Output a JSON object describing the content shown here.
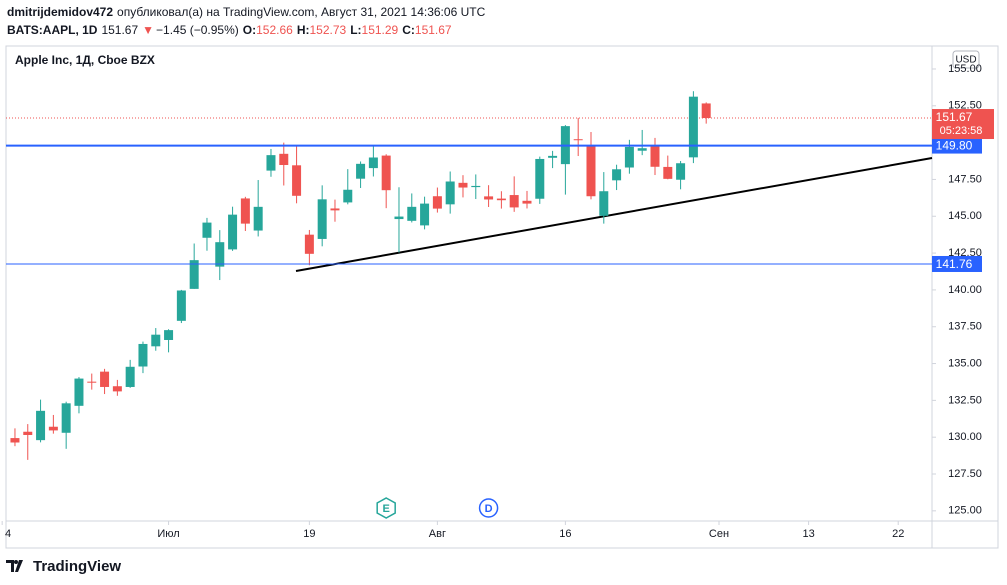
{
  "header": {
    "author": "dmitrijdemidov472",
    "published": "опубликовал(а) на TradingView.com, Август 31, 2021 14:36:06 UTC",
    "symbol": "BATS:AAPL, 1D",
    "last": "151.67",
    "arrow": "▼",
    "change": "−1.45 (−0.95%)",
    "o_label": "O:",
    "open": "152.66",
    "h_label": "H:",
    "high": "152.73",
    "l_label": "L:",
    "low": "151.29",
    "c_label": "C:",
    "close": "151.67"
  },
  "footer": {
    "brand": "TradingView"
  },
  "chart_data": {
    "type": "candlestick",
    "title": "Apple Inc, 1Д, Cboe BZX",
    "currency": "USD",
    "up_color": "#26a69a",
    "down_color": "#ef5350",
    "x": [
      0,
      1,
      2,
      3,
      4,
      5,
      6,
      7,
      8,
      9,
      10,
      11,
      12,
      13,
      14,
      15,
      16,
      17,
      18,
      19,
      20,
      21,
      22,
      23,
      24,
      25,
      26,
      27,
      28,
      29,
      30,
      31,
      32,
      33,
      34,
      35,
      36,
      37,
      38,
      39,
      40,
      41,
      42,
      43,
      44,
      45,
      46,
      47,
      48,
      49,
      50,
      51,
      52,
      53,
      54
    ],
    "open": [
      129.94,
      130.37,
      129.8,
      130.71,
      130.3,
      132.13,
      133.77,
      134.45,
      133.46,
      133.41,
      134.8,
      136.17,
      136.6,
      137.9,
      140.07,
      143.54,
      141.58,
      142.75,
      146.21,
      144.03,
      148.1,
      149.24,
      148.46,
      143.75,
      143.46,
      145.53,
      145.94,
      147.55,
      148.27,
      149.12,
      144.81,
      144.69,
      144.38,
      146.36,
      145.81,
      147.27,
      146.98,
      146.35,
      146.2,
      146.44,
      146.05,
      146.19,
      148.97,
      148.54,
      150.23,
      149.8,
      145.03,
      147.44,
      148.31,
      149.45,
      149.81,
      148.35,
      147.48,
      149.0,
      152.66
    ],
    "high": [
      130.6,
      130.89,
      132.55,
      131.51,
      132.41,
      134.08,
      134.32,
      134.64,
      133.89,
      135.25,
      136.49,
      137.41,
      137.33,
      140.0,
      143.15,
      144.89,
      144.06,
      145.65,
      146.32,
      147.46,
      149.57,
      150.0,
      149.76,
      144.07,
      147.1,
      146.13,
      148.2,
      148.72,
      149.83,
      149.21,
      146.97,
      146.55,
      146.33,
      146.95,
      148.04,
      147.79,
      147.84,
      147.11,
      146.7,
      147.71,
      146.72,
      149.05,
      149.44,
      151.19,
      151.68,
      150.72,
      148.0,
      148.5,
      150.19,
      150.86,
      150.32,
      149.12,
      148.75,
      153.49,
      152.73
    ],
    "low": [
      129.39,
      128.46,
      129.65,
      130.24,
      129.21,
      131.62,
      133.23,
      132.93,
      132.81,
      133.35,
      134.35,
      135.87,
      135.76,
      137.75,
      140.07,
      142.66,
      140.67,
      142.65,
      144.0,
      143.63,
      147.68,
      147.09,
      145.88,
      141.67,
      142.96,
      144.63,
      145.81,
      146.92,
      147.7,
      145.55,
      142.54,
      144.58,
      144.11,
      145.25,
      145.18,
      146.28,
      146.17,
      145.63,
      145.52,
      145.3,
      145.53,
      145.84,
      148.27,
      146.47,
      149.09,
      146.15,
      144.5,
      146.78,
      147.89,
      149.15,
      147.8,
      147.51,
      146.83,
      148.61,
      151.29
    ],
    "close": [
      129.64,
      130.15,
      131.79,
      130.46,
      132.3,
      133.98,
      133.7,
      133.41,
      133.11,
      134.78,
      136.33,
      136.96,
      137.27,
      139.96,
      142.02,
      144.57,
      143.24,
      145.11,
      144.5,
      145.64,
      149.15,
      148.48,
      146.39,
      142.45,
      146.15,
      145.4,
      146.8,
      148.56,
      148.99,
      146.77,
      144.98,
      145.64,
      145.86,
      145.52,
      147.36,
      146.95,
      147.06,
      146.14,
      146.09,
      145.6,
      145.86,
      148.89,
      149.1,
      151.12,
      150.19,
      146.36,
      146.7,
      148.19,
      149.71,
      149.62,
      148.36,
      147.54,
      148.6,
      153.12,
      151.67
    ],
    "xlim": [
      -0.7,
      71.64
    ],
    "xticks": [
      {
        "value": -1,
        "label": "4"
      },
      {
        "value": 12,
        "label": "Июл"
      },
      {
        "value": 23,
        "label": "19"
      },
      {
        "value": 33,
        "label": "Авг"
      },
      {
        "value": 43,
        "label": "16"
      },
      {
        "value": 55,
        "label": "Сен"
      },
      {
        "value": 62,
        "label": "13"
      },
      {
        "value": 69,
        "label": "22"
      }
    ],
    "ylim": [
      124.31,
      156.56
    ],
    "yticks": [
      {
        "value": 125,
        "label": "125.00"
      },
      {
        "value": 127.5,
        "label": "127.50"
      },
      {
        "value": 130,
        "label": "130.00"
      },
      {
        "value": 132.5,
        "label": "132.50"
      },
      {
        "value": 135,
        "label": "135.00"
      },
      {
        "value": 137.5,
        "label": "137.50"
      },
      {
        "value": 140,
        "label": "140.00"
      },
      {
        "value": 142.5,
        "label": "142.50"
      },
      {
        "value": 145,
        "label": "145.00"
      },
      {
        "value": 147.5,
        "label": "147.50"
      },
      {
        "value": 150,
        "label": "150.00"
      },
      {
        "value": 152.5,
        "label": "152.50"
      },
      {
        "value": 155,
        "label": "155.00"
      }
    ],
    "hlines": [
      {
        "value": 149.8,
        "label": "149.80",
        "color": "#2962ff"
      },
      {
        "value": 141.76,
        "label": "141.76",
        "color": "#2962ff"
      }
    ],
    "price_line": {
      "value": 151.67,
      "label": "151.67",
      "countdown": "05:23:58",
      "color": "#ef5350"
    },
    "events": [
      {
        "x": 29,
        "label": "E",
        "color": "#26a69a"
      },
      {
        "x": 37,
        "label": "D",
        "color": "#2962ff"
      }
    ]
  }
}
